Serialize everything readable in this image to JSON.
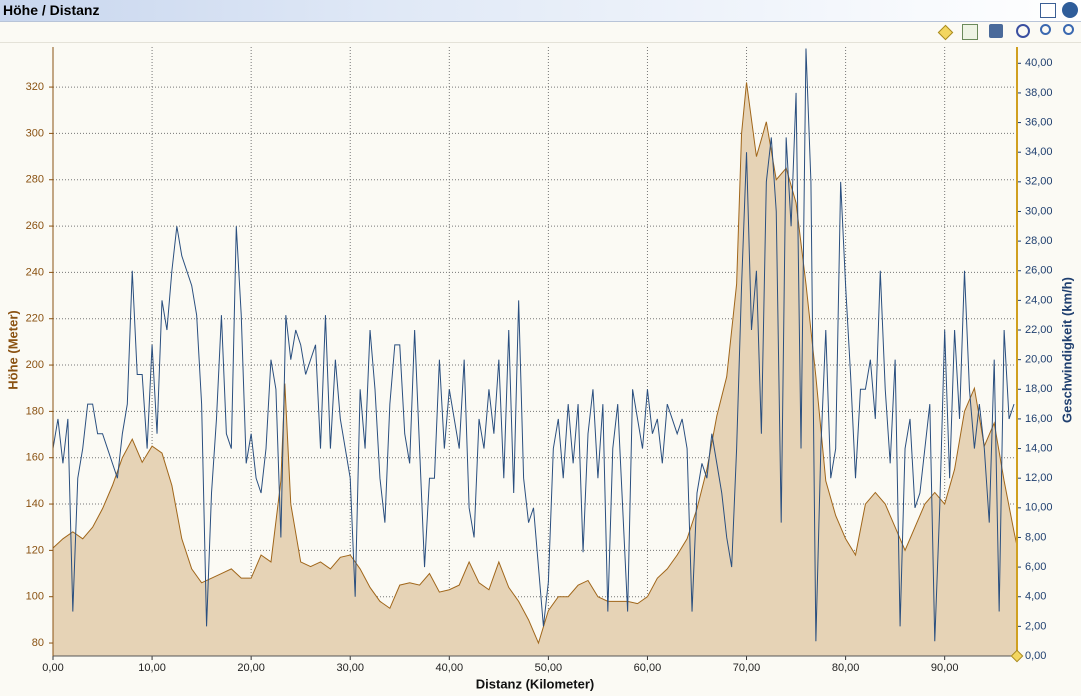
{
  "window": {
    "title": "Höhe / Distanz"
  },
  "chart_data": {
    "type": "area-line",
    "xlabel": "Distanz (Kilometer)",
    "ylabel": "Höhe (Meter)",
    "y2label": "Geschwindigkeit (km/h)",
    "xlim": [
      0,
      97.3
    ],
    "ylim": [
      74.4,
      337.3
    ],
    "y2lim": [
      0,
      41.1
    ],
    "grid": true,
    "xticks": [
      {
        "value": 0,
        "label": "0,00"
      },
      {
        "value": 10,
        "label": "10,00"
      },
      {
        "value": 20,
        "label": "20,00"
      },
      {
        "value": 30,
        "label": "30,00"
      },
      {
        "value": 40,
        "label": "40,00"
      },
      {
        "value": 50,
        "label": "50,00"
      },
      {
        "value": 60,
        "label": "60,00"
      },
      {
        "value": 70,
        "label": "70,00"
      },
      {
        "value": 80,
        "label": "80,00"
      },
      {
        "value": 90,
        "label": "90,00"
      }
    ],
    "yticks": [
      80,
      100,
      120,
      140,
      160,
      180,
      200,
      220,
      240,
      260,
      280,
      300,
      320
    ],
    "y2ticks": [
      {
        "value": 0,
        "label": "0,00"
      },
      {
        "value": 2,
        "label": "2,00"
      },
      {
        "value": 4,
        "label": "4,00"
      },
      {
        "value": 6,
        "label": "6,00"
      },
      {
        "value": 8,
        "label": "8,00"
      },
      {
        "value": 10,
        "label": "10,00"
      },
      {
        "value": 12,
        "label": "12,00"
      },
      {
        "value": 14,
        "label": "14,00"
      },
      {
        "value": 16,
        "label": "16,00"
      },
      {
        "value": 18,
        "label": "18,00"
      },
      {
        "value": 20,
        "label": "20,00"
      },
      {
        "value": 22,
        "label": "22,00"
      },
      {
        "value": 24,
        "label": "24,00"
      },
      {
        "value": 26,
        "label": "26,00"
      },
      {
        "value": 28,
        "label": "28,00"
      },
      {
        "value": 30,
        "label": "30,00"
      },
      {
        "value": 32,
        "label": "32,00"
      },
      {
        "value": 34,
        "label": "34,00"
      },
      {
        "value": 36,
        "label": "36,00"
      },
      {
        "value": 38,
        "label": "38,00"
      },
      {
        "value": 40,
        "label": "40,00"
      }
    ],
    "series": [
      {
        "kind": "area",
        "color": "#a0661a",
        "fill": "#e6d3b6",
        "x": [
          0,
          1,
          2,
          3,
          4,
          5,
          6,
          7,
          8,
          9,
          10,
          11,
          12,
          13,
          14,
          15,
          16,
          17,
          18,
          19,
          20,
          21,
          22,
          23,
          23.4,
          24,
          25,
          26,
          27,
          28,
          29,
          30,
          31,
          32,
          33,
          34,
          35,
          36,
          37,
          38,
          39,
          40,
          41,
          42,
          43,
          44,
          45,
          46,
          47,
          48,
          49,
          50,
          51,
          52,
          53,
          54,
          55,
          56,
          57,
          58,
          59,
          60,
          61,
          62,
          63,
          64,
          65,
          66,
          67,
          68,
          69,
          69.5,
          70,
          71,
          72,
          73,
          74,
          75,
          76,
          77,
          78,
          79,
          80,
          81,
          82,
          83,
          84,
          85,
          86,
          87,
          88,
          89,
          90,
          91,
          92,
          93,
          94,
          95,
          96,
          97,
          97.3
        ],
        "values": [
          121,
          125,
          128,
          125,
          130,
          138,
          148,
          160,
          168,
          158,
          165,
          162,
          148,
          125,
          112,
          106,
          108,
          110,
          112,
          108,
          108,
          118,
          115,
          150,
          192,
          140,
          115,
          113,
          115,
          112,
          117,
          118,
          112,
          104,
          98,
          95,
          105,
          106,
          105,
          110,
          102,
          103,
          105,
          115,
          106,
          103,
          115,
          104,
          98,
          90,
          80,
          94,
          100,
          100,
          105,
          107,
          100,
          98,
          98,
          98,
          97,
          100,
          108,
          112,
          118,
          125,
          138,
          155,
          178,
          195,
          235,
          300,
          322,
          290,
          305,
          280,
          285,
          270,
          235,
          195,
          150,
          135,
          125,
          118,
          140,
          145,
          140,
          130,
          120,
          130,
          140,
          145,
          140,
          155,
          180,
          190,
          165,
          175,
          150,
          128,
          122
        ]
      },
      {
        "kind": "line",
        "axis": "y2",
        "color": "#2a4f7f",
        "x": [
          0,
          0.5,
          1,
          1.5,
          2,
          2.5,
          3,
          3.5,
          4,
          4.5,
          5,
          5.5,
          6,
          6.5,
          7,
          7.5,
          8,
          8.5,
          9,
          9.5,
          10,
          10.5,
          11,
          11.5,
          12,
          12.5,
          13,
          13.5,
          14,
          14.5,
          15,
          15.5,
          16,
          16.5,
          17,
          17.5,
          18,
          18.5,
          19,
          19.5,
          20,
          20.5,
          21,
          21.5,
          22,
          22.5,
          23,
          23.5,
          24,
          24.5,
          25,
          25.5,
          26,
          26.5,
          27,
          27.5,
          28,
          28.5,
          29,
          29.5,
          30,
          30.5,
          31,
          31.5,
          32,
          32.5,
          33,
          33.5,
          34,
          34.5,
          35,
          35.5,
          36,
          36.5,
          37,
          37.5,
          38,
          38.5,
          39,
          39.5,
          40,
          40.5,
          41,
          41.5,
          42,
          42.5,
          43,
          43.5,
          44,
          44.5,
          45,
          45.5,
          46,
          46.5,
          47,
          47.5,
          48,
          48.5,
          49,
          49.5,
          50,
          50.5,
          51,
          51.5,
          52,
          52.5,
          53,
          53.5,
          54,
          54.5,
          55,
          55.5,
          56,
          56.5,
          57,
          57.5,
          58,
          58.5,
          59,
          59.5,
          60,
          60.5,
          61,
          61.5,
          62,
          62.5,
          63,
          63.5,
          64,
          64.5,
          65,
          65.5,
          66,
          66.5,
          67,
          67.5,
          68,
          68.5,
          69,
          69.5,
          70,
          70.5,
          71,
          71.5,
          72,
          72.5,
          73,
          73.5,
          74,
          74.5,
          75,
          75.5,
          76,
          76.5,
          77,
          77.5,
          78,
          78.5,
          79,
          79.5,
          80,
          80.5,
          81,
          81.5,
          82,
          82.5,
          83,
          83.5,
          84,
          84.5,
          85,
          85.5,
          86,
          86.5,
          87,
          87.5,
          88,
          88.5,
          89,
          89.5,
          90,
          90.5,
          91,
          91.5,
          92,
          92.5,
          93,
          93.5,
          94,
          94.5,
          95,
          95.5,
          96,
          96.5,
          97
        ],
        "values": [
          14,
          16,
          13,
          16,
          3,
          12,
          14,
          17,
          17,
          15,
          15,
          14,
          13,
          12,
          15,
          17,
          26,
          19,
          19,
          14,
          21,
          15,
          24,
          22,
          26,
          29,
          27,
          26,
          25,
          23,
          17,
          2,
          11,
          16,
          23,
          15,
          14,
          29,
          23,
          13,
          15,
          12,
          11,
          14,
          20,
          18,
          8,
          23,
          20,
          22,
          21,
          19,
          20,
          21,
          14,
          23,
          14,
          20,
          16,
          14,
          12,
          4,
          18,
          14,
          22,
          18,
          12,
          9,
          17,
          21,
          21,
          15,
          13,
          22,
          14,
          6,
          12,
          12,
          20,
          14,
          18,
          16,
          14,
          20,
          10,
          8,
          16,
          14,
          18,
          15,
          20,
          12,
          22,
          11,
          24,
          12,
          9,
          10,
          6,
          2,
          5,
          14,
          16,
          12,
          17,
          13,
          17,
          7,
          15,
          18,
          12,
          17,
          3,
          14,
          17,
          10,
          3,
          18,
          16,
          14,
          18,
          15,
          16,
          13,
          17,
          16,
          15,
          16,
          14,
          3,
          11,
          13,
          12,
          15,
          13,
          11,
          8,
          6,
          14,
          25,
          34,
          22,
          26,
          15,
          32,
          35,
          30,
          9,
          35,
          29,
          38,
          14,
          41,
          32,
          1,
          14,
          22,
          12,
          14,
          32,
          25,
          19,
          12,
          18,
          18,
          20,
          16,
          26,
          18,
          13,
          20,
          2,
          14,
          16,
          10,
          11,
          14,
          17,
          1,
          10,
          22,
          12,
          22,
          16,
          26,
          18,
          14,
          17,
          14,
          9,
          20,
          3,
          22,
          16,
          17
        ]
      }
    ]
  }
}
